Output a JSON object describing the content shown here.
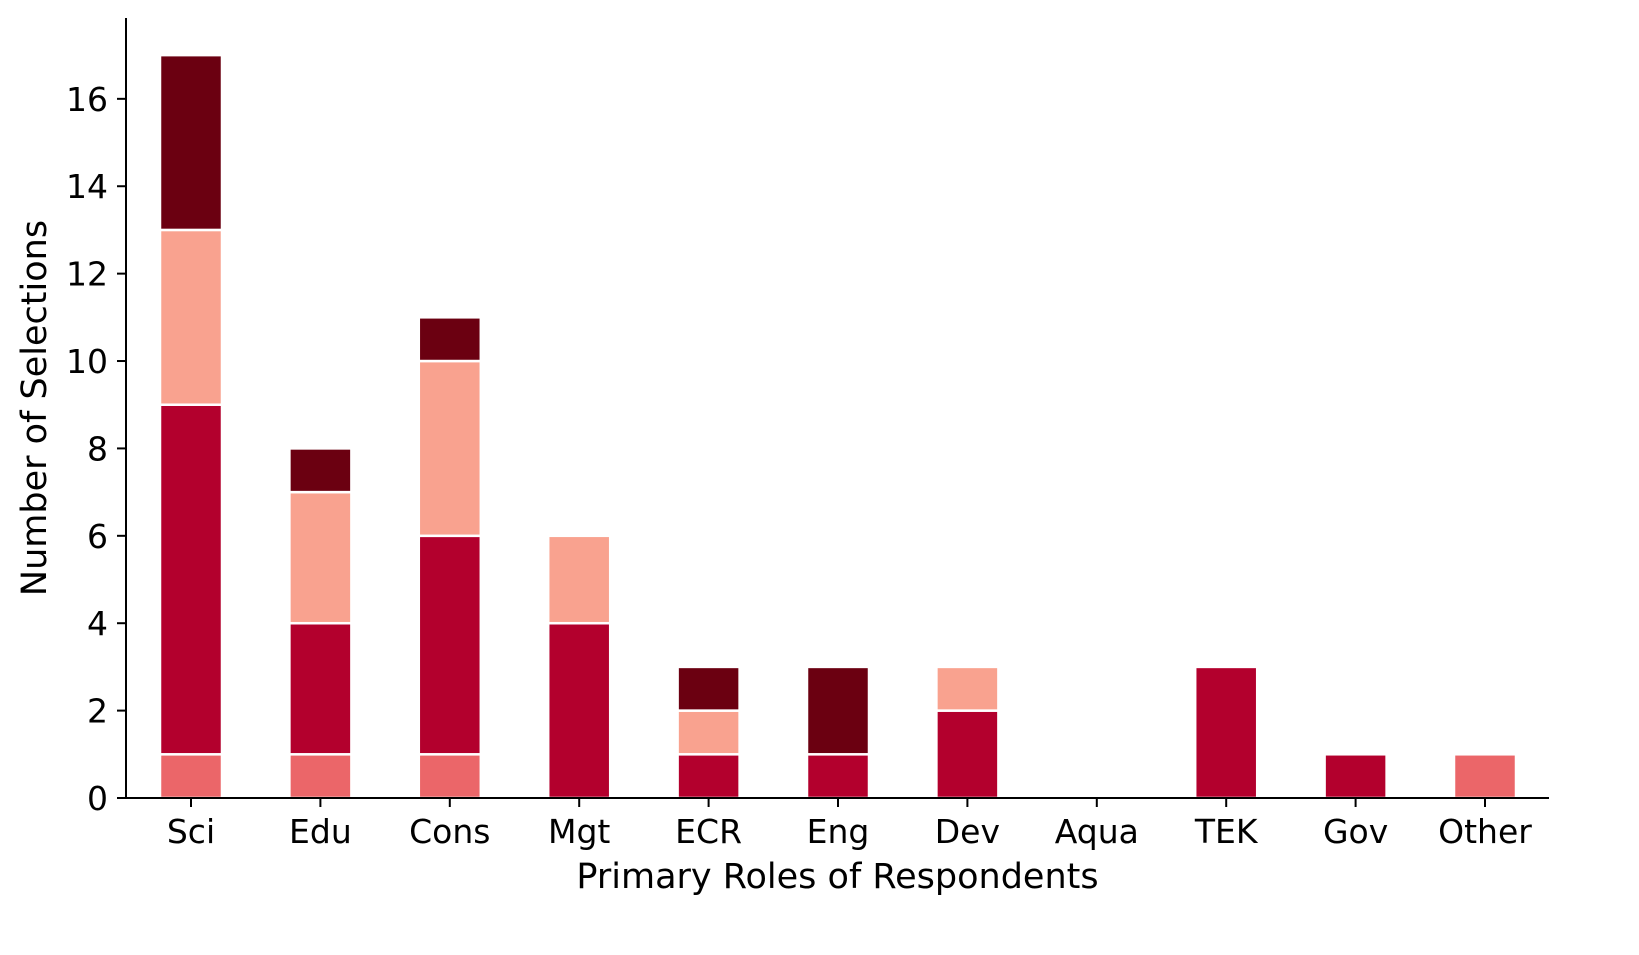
{
  "chart_data": {
    "type": "bar",
    "stacked": true,
    "categories": [
      "Sci",
      "Edu",
      "Cons",
      "Mgt",
      "ECR",
      "Eng",
      "Dev",
      "Aqua",
      "TEK",
      "Gov",
      "Other"
    ],
    "series": [
      {
        "color": "#eb6669",
        "values": [
          1,
          1,
          1,
          0,
          0,
          0,
          0,
          0,
          0,
          0,
          1
        ]
      },
      {
        "color": "#b3002d",
        "values": [
          8,
          3,
          5,
          4,
          1,
          1,
          2,
          0,
          3,
          1,
          0
        ]
      },
      {
        "color": "#f9a28f",
        "values": [
          4,
          3,
          4,
          2,
          1,
          0,
          1,
          0,
          0,
          0,
          0
        ]
      },
      {
        "color": "#6b0011",
        "values": [
          4,
          1,
          1,
          0,
          1,
          2,
          0,
          0,
          0,
          0,
          0
        ]
      }
    ],
    "xlabel": "Primary Roles of Respondents",
    "ylabel": "Number of Selections",
    "ylim": [
      0,
      17.85
    ],
    "yticks": [
      0,
      2,
      4,
      6,
      8,
      10,
      12,
      14,
      16
    ],
    "grid": false,
    "legend": "none"
  }
}
